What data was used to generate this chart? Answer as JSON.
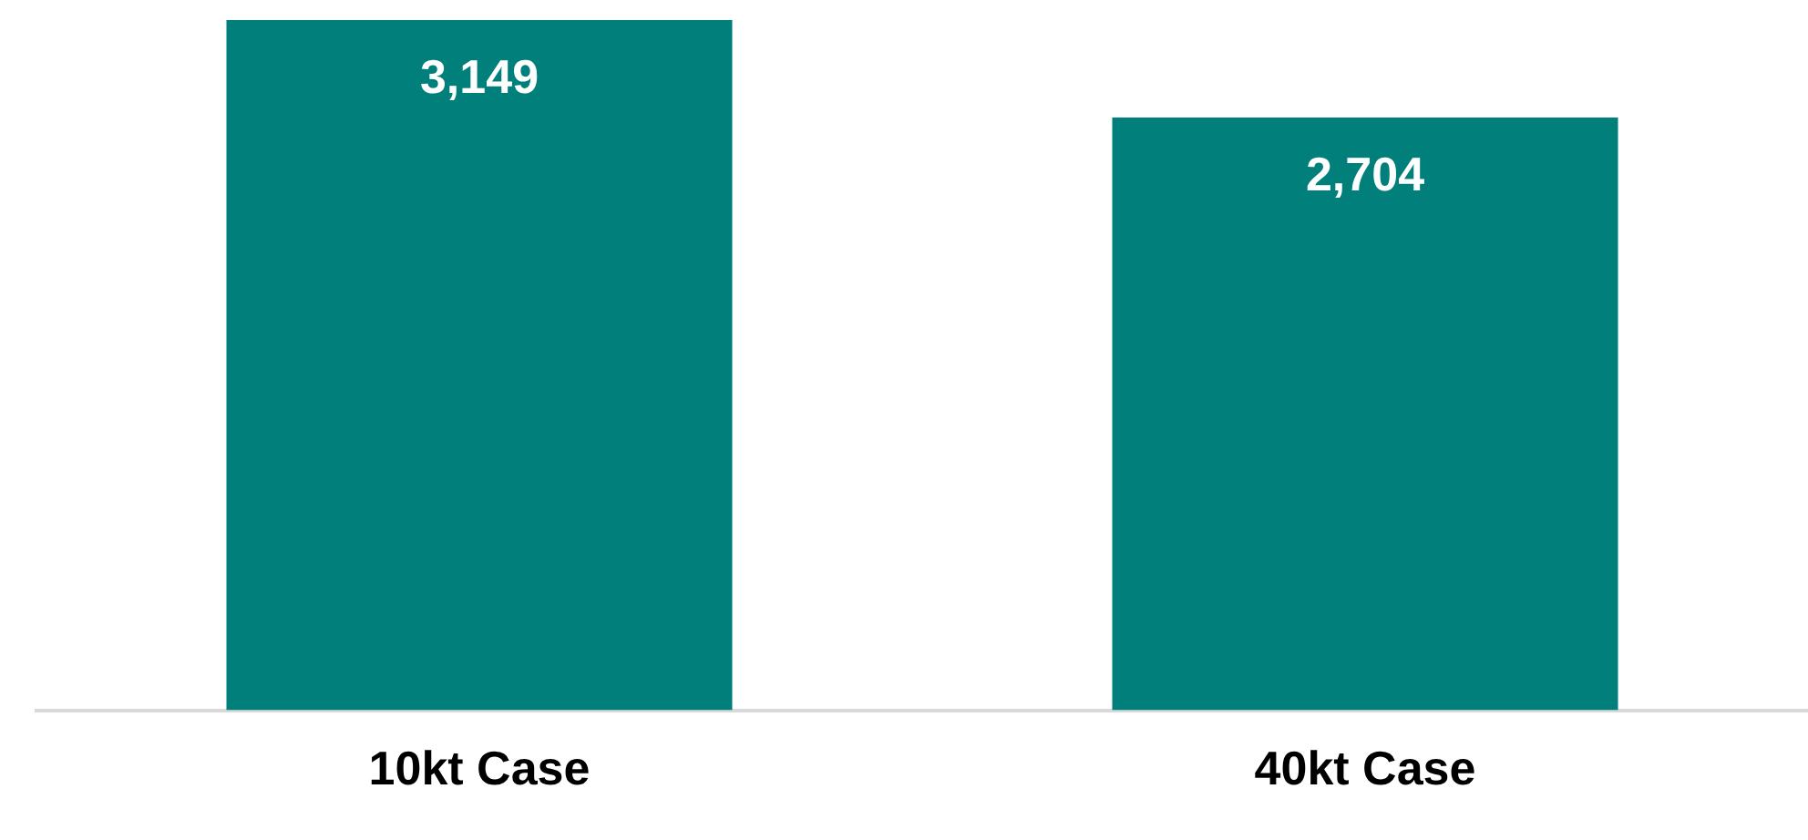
{
  "chart_data": {
    "type": "bar",
    "categories": [
      "10kt Case",
      "40kt Case"
    ],
    "values": [
      3149,
      2704
    ],
    "value_labels": [
      "3,149",
      "2,704"
    ],
    "color": "#007f7b",
    "grid": false,
    "legend": false
  }
}
